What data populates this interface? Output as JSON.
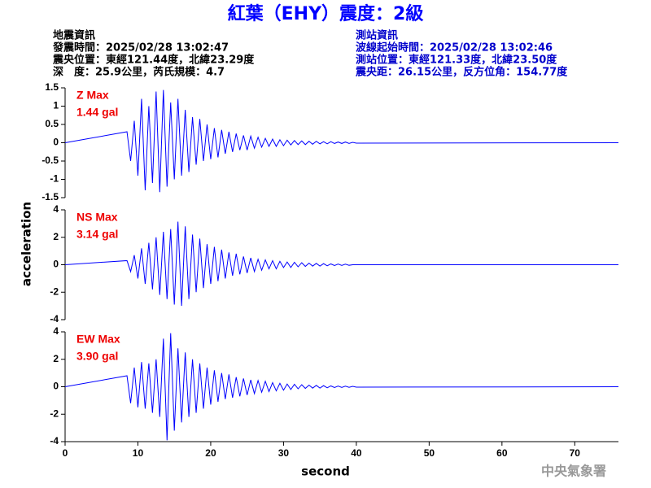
{
  "title": "紅葉（EHY）震度：2級",
  "event_info": {
    "heading": "地震資訊",
    "lines": [
      "發震時間：2025/02/28 13:02:47",
      "震央位置：東經121.44度，北緯23.29度",
      "深　度：25.9公里，芮氏規模：4.7"
    ]
  },
  "station_info": {
    "heading": "測站資訊",
    "lines": [
      "波線起始時間：2025/02/28 13:02:46",
      "測站位置：東經121.33度，北緯23.50度",
      "震央距：26.15公里，反方位角：154.77度"
    ]
  },
  "y_label": "acceleration",
  "x_label": "second",
  "footer": "中央氣象署",
  "chart_data": [
    {
      "type": "line",
      "annotation": [
        "Z Max",
        "1.44 gal"
      ],
      "xlim": [
        0,
        76
      ],
      "ylim": [
        -1.5,
        1.5
      ],
      "yticks": [
        -1.5,
        -1,
        -0.5,
        0,
        0.5,
        1,
        1.5
      ],
      "x": [
        0,
        8.5,
        9,
        9.5,
        10,
        10.5,
        11,
        11.5,
        12,
        12.5,
        13,
        13.5,
        14,
        14.5,
        15,
        15.5,
        16,
        16.5,
        17,
        17.5,
        18,
        18.5,
        19,
        19.5,
        20,
        20.5,
        21,
        21.5,
        22,
        22.5,
        23,
        23.5,
        24,
        24.5,
        25,
        25.5,
        26,
        26.5,
        27,
        27.5,
        28,
        28.5,
        29,
        29.5,
        30,
        30.5,
        31,
        31.5,
        32,
        32.5,
        33,
        33.5,
        34,
        34.5,
        35,
        35.5,
        36,
        36.5,
        37,
        37.5,
        38,
        38.5,
        39,
        39.5,
        40,
        76
      ],
      "series": [
        {
          "color": "#0000ff",
          "values": [
            0,
            0.3,
            -0.5,
            0.6,
            -0.9,
            1.2,
            -1.3,
            1.0,
            -1.1,
            1.4,
            -1.35,
            1.44,
            -1.2,
            1.1,
            -1.0,
            1.2,
            -0.9,
            0.9,
            -0.8,
            0.7,
            -0.6,
            0.65,
            -0.5,
            0.5,
            -0.45,
            0.4,
            -0.4,
            0.35,
            -0.3,
            0.3,
            -0.25,
            0.25,
            -0.2,
            0.2,
            -0.2,
            0.18,
            -0.15,
            0.15,
            -0.12,
            0.12,
            -0.1,
            0.1,
            -0.1,
            0.08,
            -0.08,
            0.07,
            -0.06,
            0.06,
            -0.05,
            0.05,
            -0.05,
            0.04,
            -0.04,
            0.04,
            -0.03,
            0.03,
            -0.03,
            0.03,
            -0.02,
            0.02,
            -0.02,
            0.02,
            -0.02,
            0.01,
            -0.01,
            0
          ]
        }
      ]
    },
    {
      "type": "line",
      "annotation": [
        "NS Max",
        "3.14 gal"
      ],
      "xlim": [
        0,
        76
      ],
      "ylim": [
        -4,
        4
      ],
      "yticks": [
        -4,
        -2,
        0,
        2,
        4
      ],
      "x": [
        0,
        8.5,
        9,
        9.5,
        10,
        10.5,
        11,
        11.5,
        12,
        12.5,
        13,
        13.5,
        14,
        14.5,
        15,
        15.5,
        16,
        16.5,
        17,
        17.5,
        18,
        18.5,
        19,
        19.5,
        20,
        20.5,
        21,
        21.5,
        22,
        22.5,
        23,
        23.5,
        24,
        24.5,
        25,
        25.5,
        26,
        26.5,
        27,
        27.5,
        28,
        28.5,
        29,
        29.5,
        30,
        30.5,
        31,
        31.5,
        32,
        32.5,
        33,
        33.5,
        34,
        34.5,
        35,
        35.5,
        36,
        36.5,
        37,
        37.5,
        38,
        38.5,
        39,
        39.5,
        40,
        76
      ],
      "series": [
        {
          "color": "#0000ff",
          "values": [
            0,
            0.3,
            -0.5,
            0.7,
            -1.0,
            1.2,
            -1.4,
            1.6,
            -1.8,
            2.0,
            -2.2,
            2.4,
            -2.5,
            2.6,
            -2.9,
            3.14,
            -3.0,
            2.8,
            -2.5,
            2.2,
            -2.0,
            1.9,
            -1.7,
            1.5,
            -1.4,
            1.3,
            -1.2,
            1.1,
            -1.0,
            0.9,
            -0.8,
            0.8,
            -0.7,
            0.6,
            -0.6,
            0.5,
            -0.5,
            0.4,
            -0.4,
            0.35,
            -0.3,
            0.3,
            -0.3,
            0.25,
            -0.2,
            0.2,
            -0.2,
            0.18,
            -0.15,
            0.15,
            -0.12,
            0.12,
            -0.1,
            0.1,
            -0.1,
            0.08,
            -0.08,
            0.06,
            -0.06,
            0.05,
            -0.05,
            0.04,
            -0.04,
            0,
            0,
            0
          ]
        }
      ]
    },
    {
      "type": "line",
      "annotation": [
        "EW Max",
        "3.90 gal"
      ],
      "xlim": [
        0,
        76
      ],
      "ylim": [
        -4,
        4
      ],
      "yticks": [
        -4,
        -2,
        0,
        2,
        4
      ],
      "xticks": [
        0,
        10,
        20,
        30,
        40,
        50,
        60,
        70
      ],
      "x": [
        0,
        8.5,
        9,
        9.5,
        10,
        10.5,
        11,
        11.5,
        12,
        12.5,
        13,
        13.5,
        14,
        14.5,
        15,
        15.5,
        16,
        16.5,
        17,
        17.5,
        18,
        18.5,
        19,
        19.5,
        20,
        20.5,
        21,
        21.5,
        22,
        22.5,
        23,
        23.5,
        24,
        24.5,
        25,
        25.5,
        26,
        26.5,
        27,
        27.5,
        28,
        28.5,
        29,
        29.5,
        30,
        30.5,
        31,
        31.5,
        32,
        32.5,
        33,
        33.5,
        34,
        34.5,
        35,
        35.5,
        36,
        36.5,
        37,
        37.5,
        38,
        38.5,
        39,
        39.5,
        40,
        76
      ],
      "series": [
        {
          "color": "#0000ff",
          "values": [
            0,
            0.8,
            -1.2,
            1.4,
            -1.5,
            1.8,
            -1.6,
            1.7,
            -1.9,
            2.0,
            -2.2,
            3.5,
            -3.9,
            3.9,
            -3.2,
            2.8,
            -2.6,
            2.5,
            -2.2,
            2.0,
            -1.9,
            1.7,
            -1.6,
            1.4,
            -1.3,
            1.2,
            -1.1,
            1.0,
            -0.9,
            0.9,
            -0.8,
            0.7,
            -0.7,
            0.6,
            -0.6,
            0.5,
            -0.5,
            0.45,
            -0.4,
            0.4,
            -0.35,
            0.3,
            -0.3,
            0.25,
            -0.25,
            0.2,
            -0.2,
            0.18,
            -0.15,
            0.15,
            -0.12,
            0.12,
            -0.1,
            0.1,
            -0.1,
            0.08,
            -0.08,
            0.06,
            -0.06,
            0.05,
            -0.05,
            0.04,
            -0.04,
            0.03,
            -0.03,
            0
          ]
        }
      ]
    }
  ]
}
